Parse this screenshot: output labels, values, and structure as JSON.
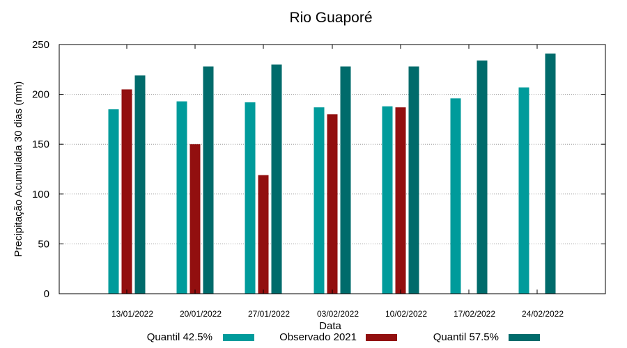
{
  "chart_data": {
    "type": "bar",
    "title": "Rio Guaporé",
    "xlabel": "Data",
    "ylabel": "Precipitação Acumulada 30 dias (mm)",
    "ylim": [
      0,
      250
    ],
    "yticks": [
      0,
      50,
      100,
      150,
      200,
      250
    ],
    "grid": true,
    "legend_position": "bottom",
    "categories": [
      "13/01/2022",
      "20/01/2022",
      "27/01/2022",
      "03/02/2022",
      "10/02/2022",
      "17/02/2022",
      "24/02/2022"
    ],
    "series": [
      {
        "name": "Quantil 42.5%",
        "color": "#009b9b",
        "values": [
          185,
          193,
          192,
          187,
          188,
          196,
          207
        ]
      },
      {
        "name": "Observado 2021",
        "color": "#920f0f",
        "values": [
          205,
          150,
          119,
          180,
          187,
          null,
          null
        ]
      },
      {
        "name": "Quantil 57.5%",
        "color": "#006b6b",
        "values": [
          219,
          228,
          230,
          228,
          228,
          234,
          241
        ]
      }
    ]
  }
}
